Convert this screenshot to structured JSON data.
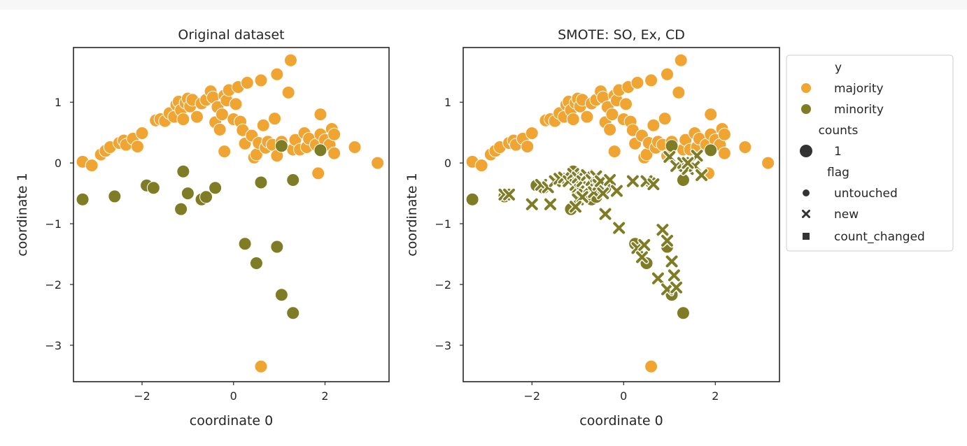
{
  "colors": {
    "majority": "#f0a532",
    "minority": "#7e7d25",
    "text": "#262626",
    "frame": "#262626",
    "legend_marker": "#333333"
  },
  "legend": {
    "entries": [
      {
        "label": "y",
        "kind": "header"
      },
      {
        "label": "majority",
        "kind": "color",
        "series": "majority"
      },
      {
        "label": "minority",
        "kind": "color",
        "series": "minority"
      },
      {
        "label": "counts",
        "kind": "header"
      },
      {
        "label": "1",
        "kind": "size"
      },
      {
        "label": "flag",
        "kind": "header"
      },
      {
        "label": "untouched",
        "kind": "marker",
        "marker": "circle"
      },
      {
        "label": "new",
        "kind": "marker",
        "marker": "x"
      },
      {
        "label": "count_changed",
        "kind": "marker",
        "marker": "square"
      }
    ]
  },
  "chart_data": [
    {
      "type": "scatter",
      "title": "Original dataset",
      "xlabel": "coordinate 0",
      "ylabel": "coordinate 1",
      "xlim": [
        -3.5,
        3.4
      ],
      "ylim": [
        -3.6,
        1.9
      ],
      "xticks": [
        -2,
        0,
        2
      ],
      "xtick_labels": [
        "−2",
        "0",
        "2"
      ],
      "yticks": [
        1,
        0,
        -1,
        -2,
        -3
      ],
      "ytick_labels": [
        "1",
        "0",
        "−1",
        "−2",
        "−3"
      ],
      "grid": false,
      "series": [
        {
          "name": "majority",
          "marker": "circle",
          "points": [
            [
              -3.3,
              0.02
            ],
            [
              -3.1,
              -0.04
            ],
            [
              -2.9,
              0.14
            ],
            [
              -2.8,
              0.2
            ],
            [
              -2.7,
              0.26
            ],
            [
              -2.5,
              0.33
            ],
            [
              -2.4,
              0.37
            ],
            [
              -2.35,
              0.3
            ],
            [
              -2.2,
              0.4
            ],
            [
              -2.1,
              0.27
            ],
            [
              -2.0,
              0.49
            ],
            [
              -1.7,
              0.7
            ],
            [
              -1.6,
              0.72
            ],
            [
              -1.5,
              0.69
            ],
            [
              -1.4,
              0.82
            ],
            [
              -1.3,
              0.76
            ],
            [
              -1.25,
              0.96
            ],
            [
              -1.2,
              1.01
            ],
            [
              -1.15,
              0.87
            ],
            [
              -1.1,
              0.72
            ],
            [
              -1.05,
              0.99
            ],
            [
              -1.0,
              1.06
            ],
            [
              -0.95,
              0.93
            ],
            [
              -0.9,
              1.04
            ],
            [
              -0.8,
              0.76
            ],
            [
              -0.7,
              0.98
            ],
            [
              -0.6,
              1.04
            ],
            [
              -0.5,
              1.18
            ],
            [
              -0.45,
              1.08
            ],
            [
              -0.4,
              0.67
            ],
            [
              -0.35,
              0.92
            ],
            [
              -0.3,
              0.55
            ],
            [
              -0.25,
              0.8
            ],
            [
              -0.2,
              1.11
            ],
            [
              -0.15,
              1.03
            ],
            [
              -0.1,
              1.2
            ],
            [
              -0.2,
              0.19
            ],
            [
              0.0,
              0.72
            ],
            [
              0.05,
              0.97
            ],
            [
              0.1,
              1.25
            ],
            [
              0.15,
              0.68
            ],
            [
              0.2,
              0.54
            ],
            [
              0.25,
              0.32
            ],
            [
              0.3,
              1.32
            ],
            [
              0.4,
              0.45
            ],
            [
              0.45,
              0.09
            ],
            [
              0.5,
              0.14
            ],
            [
              0.55,
              0.33
            ],
            [
              0.6,
              1.36
            ],
            [
              0.65,
              0.62
            ],
            [
              0.7,
              0.25
            ],
            [
              0.75,
              0.35
            ],
            [
              0.85,
              0.3
            ],
            [
              0.9,
              0.73
            ],
            [
              0.95,
              1.46
            ],
            [
              0.95,
              0.12
            ],
            [
              1.05,
              0.35
            ],
            [
              1.2,
              1.16
            ],
            [
              1.25,
              1.69
            ],
            [
              1.3,
              0.22
            ],
            [
              1.35,
              0.38
            ],
            [
              1.45,
              0.22
            ],
            [
              1.55,
              0.49
            ],
            [
              1.6,
              0.26
            ],
            [
              1.65,
              0.4
            ],
            [
              1.8,
              0.3
            ],
            [
              1.85,
              -0.17
            ],
            [
              1.9,
              0.47
            ],
            [
              1.9,
              0.8
            ],
            [
              2.0,
              0.38
            ],
            [
              2.1,
              0.3
            ],
            [
              2.15,
              0.56
            ],
            [
              2.2,
              0.47
            ],
            [
              2.2,
              0.16
            ],
            [
              2.65,
              0.26
            ],
            [
              3.15,
              0.0
            ],
            [
              0.6,
              -3.35
            ]
          ]
        },
        {
          "name": "minority",
          "marker": "circle",
          "points": [
            [
              -3.3,
              -0.6
            ],
            [
              -2.6,
              -0.55
            ],
            [
              -1.9,
              -0.37
            ],
            [
              -1.75,
              -0.41
            ],
            [
              -1.15,
              -0.76
            ],
            [
              -1.1,
              -0.14
            ],
            [
              -1.0,
              -0.5
            ],
            [
              -0.7,
              -0.6
            ],
            [
              -0.6,
              -0.56
            ],
            [
              -0.4,
              -0.41
            ],
            [
              0.6,
              -0.32
            ],
            [
              1.05,
              0.28
            ],
            [
              1.3,
              -0.28
            ],
            [
              1.9,
              0.21
            ],
            [
              0.25,
              -1.33
            ],
            [
              0.5,
              -1.65
            ],
            [
              0.95,
              -1.38
            ],
            [
              1.05,
              -2.17
            ],
            [
              1.3,
              -2.47
            ]
          ]
        }
      ]
    },
    {
      "type": "scatter",
      "title": "SMOTE: SO, Ex, CD",
      "xlabel": "coordinate 0",
      "ylabel": "coordinate 1",
      "xlim": [
        -3.5,
        3.4
      ],
      "ylim": [
        -3.6,
        1.9
      ],
      "xticks": [
        -2,
        0,
        2
      ],
      "xtick_labels": [
        "−2",
        "0",
        "2"
      ],
      "yticks": [
        1,
        0,
        -1,
        -2,
        -3
      ],
      "ytick_labels": [
        "1",
        "0",
        "−1",
        "−2",
        "−3"
      ],
      "grid": false,
      "series": [
        {
          "name": "majority",
          "marker": "circle",
          "points": [
            [
              -3.3,
              0.02
            ],
            [
              -3.1,
              -0.04
            ],
            [
              -2.9,
              0.14
            ],
            [
              -2.8,
              0.2
            ],
            [
              -2.7,
              0.26
            ],
            [
              -2.5,
              0.33
            ],
            [
              -2.4,
              0.37
            ],
            [
              -2.35,
              0.3
            ],
            [
              -2.2,
              0.4
            ],
            [
              -2.1,
              0.27
            ],
            [
              -2.0,
              0.49
            ],
            [
              -1.7,
              0.7
            ],
            [
              -1.6,
              0.72
            ],
            [
              -1.5,
              0.69
            ],
            [
              -1.4,
              0.82
            ],
            [
              -1.3,
              0.76
            ],
            [
              -1.25,
              0.96
            ],
            [
              -1.2,
              1.01
            ],
            [
              -1.15,
              0.87
            ],
            [
              -1.1,
              0.72
            ],
            [
              -1.05,
              0.99
            ],
            [
              -1.0,
              1.06
            ],
            [
              -0.95,
              0.93
            ],
            [
              -0.9,
              1.04
            ],
            [
              -0.8,
              0.76
            ],
            [
              -0.7,
              0.98
            ],
            [
              -0.6,
              1.04
            ],
            [
              -0.5,
              1.18
            ],
            [
              -0.45,
              1.08
            ],
            [
              -0.4,
              0.67
            ],
            [
              -0.35,
              0.92
            ],
            [
              -0.3,
              0.55
            ],
            [
              -0.25,
              0.8
            ],
            [
              -0.2,
              1.11
            ],
            [
              -0.15,
              1.03
            ],
            [
              -0.1,
              1.2
            ],
            [
              -0.2,
              0.19
            ],
            [
              0.0,
              0.72
            ],
            [
              0.05,
              0.97
            ],
            [
              0.1,
              1.25
            ],
            [
              0.15,
              0.68
            ],
            [
              0.2,
              0.54
            ],
            [
              0.25,
              0.32
            ],
            [
              0.3,
              1.32
            ],
            [
              0.4,
              0.45
            ],
            [
              0.45,
              0.09
            ],
            [
              0.5,
              0.14
            ],
            [
              0.55,
              0.33
            ],
            [
              0.6,
              1.36
            ],
            [
              0.65,
              0.62
            ],
            [
              0.7,
              0.25
            ],
            [
              0.75,
              0.35
            ],
            [
              0.85,
              0.3
            ],
            [
              0.9,
              0.73
            ],
            [
              0.95,
              1.46
            ],
            [
              0.95,
              0.12
            ],
            [
              1.05,
              0.35
            ],
            [
              1.2,
              1.16
            ],
            [
              1.25,
              1.69
            ],
            [
              1.3,
              0.22
            ],
            [
              1.35,
              0.38
            ],
            [
              1.45,
              0.22
            ],
            [
              1.55,
              0.49
            ],
            [
              1.6,
              0.26
            ],
            [
              1.65,
              0.4
            ],
            [
              1.8,
              0.3
            ],
            [
              1.85,
              -0.17
            ],
            [
              1.9,
              0.47
            ],
            [
              1.9,
              0.8
            ],
            [
              2.0,
              0.38
            ],
            [
              2.1,
              0.3
            ],
            [
              2.15,
              0.56
            ],
            [
              2.2,
              0.47
            ],
            [
              2.2,
              0.16
            ],
            [
              2.65,
              0.26
            ],
            [
              3.15,
              0.0
            ],
            [
              0.6,
              -3.35
            ]
          ]
        },
        {
          "name": "minority",
          "marker": "circle",
          "points": [
            [
              -3.3,
              -0.6
            ],
            [
              -2.6,
              -0.55
            ],
            [
              -1.9,
              -0.37
            ],
            [
              -1.75,
              -0.41
            ],
            [
              -1.15,
              -0.76
            ],
            [
              -1.1,
              -0.14
            ],
            [
              -1.0,
              -0.5
            ],
            [
              -0.7,
              -0.6
            ],
            [
              -0.6,
              -0.56
            ],
            [
              -0.4,
              -0.41
            ],
            [
              0.6,
              -0.32
            ],
            [
              1.05,
              0.28
            ],
            [
              1.3,
              -0.28
            ],
            [
              1.9,
              0.21
            ],
            [
              0.25,
              -1.33
            ],
            [
              0.5,
              -1.65
            ],
            [
              0.95,
              -1.38
            ],
            [
              1.05,
              -2.17
            ],
            [
              1.3,
              -2.47
            ]
          ]
        },
        {
          "name": "minority",
          "marker": "x",
          "points": [
            [
              -2.6,
              -0.52
            ],
            [
              -2.5,
              -0.52
            ],
            [
              -2.0,
              -0.68
            ],
            [
              -1.6,
              -0.68
            ],
            [
              -1.8,
              -0.36
            ],
            [
              -1.65,
              -0.4
            ],
            [
              -1.5,
              -0.3
            ],
            [
              -1.4,
              -0.26
            ],
            [
              -1.3,
              -0.24
            ],
            [
              -1.2,
              -0.3
            ],
            [
              -1.1,
              -0.18
            ],
            [
              -1.05,
              -0.36
            ],
            [
              -1.0,
              -0.24
            ],
            [
              -0.95,
              -0.44
            ],
            [
              -0.9,
              -0.3
            ],
            [
              -0.85,
              -0.52
            ],
            [
              -0.8,
              -0.2
            ],
            [
              -0.75,
              -0.4
            ],
            [
              -0.7,
              -0.28
            ],
            [
              -0.65,
              -0.48
            ],
            [
              -0.6,
              -0.22
            ],
            [
              -0.55,
              -0.36
            ],
            [
              -0.5,
              -0.3
            ],
            [
              -0.45,
              -0.5
            ],
            [
              -0.3,
              -0.28
            ],
            [
              -0.15,
              -0.46
            ],
            [
              -0.4,
              -0.84
            ],
            [
              -0.1,
              -1.07
            ],
            [
              -1.0,
              -0.6
            ],
            [
              -0.9,
              -0.56
            ],
            [
              -1.05,
              -0.72
            ],
            [
              0.2,
              -0.3
            ],
            [
              0.5,
              -0.3
            ],
            [
              0.65,
              -0.35
            ],
            [
              1.0,
              0.1
            ],
            [
              1.15,
              -0.05
            ],
            [
              1.3,
              0.0
            ],
            [
              1.4,
              -0.1
            ],
            [
              1.55,
              -0.05
            ],
            [
              1.6,
              0.12
            ],
            [
              1.7,
              -0.2
            ],
            [
              1.4,
              0.0
            ],
            [
              0.3,
              -1.4
            ],
            [
              0.45,
              -1.35
            ],
            [
              0.4,
              -1.55
            ],
            [
              0.85,
              -1.1
            ],
            [
              0.95,
              -1.28
            ],
            [
              1.05,
              -1.62
            ],
            [
              1.1,
              -1.85
            ],
            [
              0.75,
              -1.9
            ],
            [
              0.95,
              -2.08
            ],
            [
              1.15,
              -2.05
            ]
          ]
        }
      ]
    }
  ]
}
